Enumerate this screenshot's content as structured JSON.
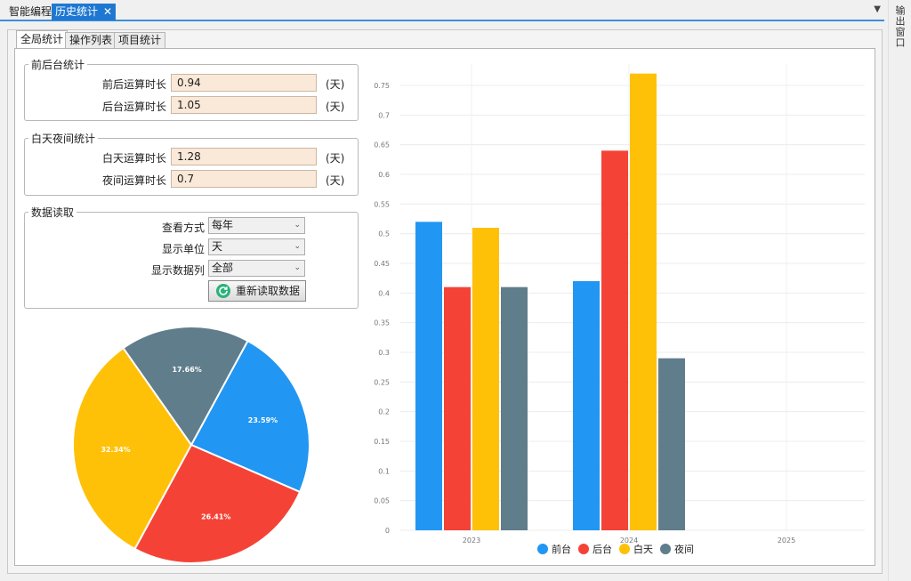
{
  "doc_tabs": [
    {
      "label": "智能编程",
      "active": false
    },
    {
      "label": "历史统计",
      "active": true
    }
  ],
  "side_strip_label": "输出窗口",
  "inner_tabs": [
    {
      "label": "全局统计",
      "active": true
    },
    {
      "label": "操作列表",
      "active": false
    },
    {
      "label": "项目统计",
      "active": false
    }
  ],
  "fg_bg_stats": {
    "title": "前后台统计",
    "rows": [
      {
        "label": "前后运算时长",
        "value": "0.94",
        "unit": "(天)"
      },
      {
        "label": "后台运算时长",
        "value": "1.05",
        "unit": "(天)"
      }
    ]
  },
  "day_night_stats": {
    "title": "白天夜间统计",
    "rows": [
      {
        "label": "白天运算时长",
        "value": "1.28",
        "unit": "(天)"
      },
      {
        "label": "夜间运算时长",
        "value": "0.7",
        "unit": "(天)"
      }
    ]
  },
  "data_read": {
    "title": "数据读取",
    "fields": [
      {
        "label": "查看方式",
        "value": "每年"
      },
      {
        "label": "显示单位",
        "value": "天"
      },
      {
        "label": "显示数据列",
        "value": "全部"
      }
    ],
    "reload_label": "重新读取数据"
  },
  "pie_chart": {
    "slices": [
      {
        "name": "前台",
        "percent": 23.59,
        "label": "23.59%",
        "color": "#2196f3"
      },
      {
        "name": "后台",
        "percent": 26.41,
        "label": "26.41%",
        "color": "#f44336"
      },
      {
        "name": "白天",
        "percent": 32.34,
        "label": "32.34%",
        "color": "#ffc107"
      },
      {
        "name": "夜间",
        "percent": 17.66,
        "label": "17.66%",
        "color": "#607d8b"
      }
    ]
  },
  "chart_data": {
    "type": "bar",
    "categories": [
      "2023",
      "2024",
      "2025"
    ],
    "series": [
      {
        "name": "前台",
        "color": "#2196f3",
        "values": [
          0.52,
          0.42,
          null
        ]
      },
      {
        "name": "后台",
        "color": "#f44336",
        "values": [
          0.41,
          0.64,
          null
        ]
      },
      {
        "name": "白天",
        "color": "#ffc107",
        "values": [
          0.51,
          0.77,
          null
        ]
      },
      {
        "name": "夜间",
        "color": "#607d8b",
        "values": [
          0.41,
          0.29,
          null
        ]
      }
    ],
    "ylim": [
      0,
      0.75
    ],
    "yticks": [
      "0",
      "0.05",
      "0.1",
      "0.15",
      "0.2",
      "0.25",
      "0.3",
      "0.35",
      "0.4",
      "0.45",
      "0.5",
      "0.55",
      "0.6",
      "0.65",
      "0.7",
      "0.75"
    ],
    "grid": true,
    "legend_position": "bottom"
  }
}
